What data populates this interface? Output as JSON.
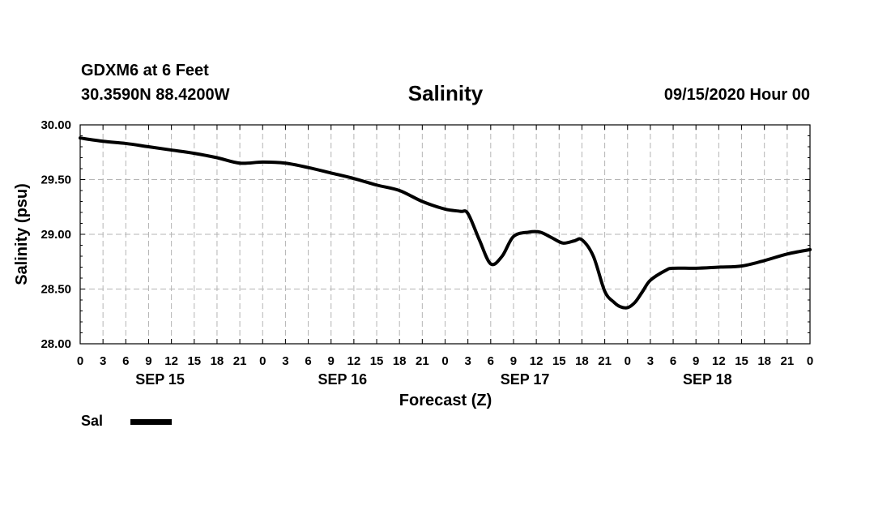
{
  "header": {
    "station": "GDXM6 at 6 Feet",
    "coords": "30.3590N 88.4200W",
    "title": "Salinity",
    "run": "09/15/2020 Hour 00"
  },
  "chart_data": {
    "type": "line",
    "title": "Salinity",
    "xlabel": "Forecast (Z)",
    "ylabel": "Salinity (psu)",
    "ylim": [
      28.0,
      30.0
    ],
    "yticks": [
      "28.00",
      "28.50",
      "29.00",
      "29.50",
      "30.00"
    ],
    "xlim_hours": [
      0,
      96
    ],
    "xtick_labels": [
      "0",
      "3",
      "6",
      "9",
      "12",
      "15",
      "18",
      "21",
      "0",
      "3",
      "6",
      "9",
      "12",
      "15",
      "18",
      "21",
      "0",
      "3",
      "6",
      "9",
      "12",
      "15",
      "18",
      "21",
      "0",
      "3",
      "6",
      "9",
      "12",
      "15",
      "18",
      "21",
      "0"
    ],
    "day_labels": [
      "SEP 15",
      "SEP 16",
      "SEP 17",
      "SEP 18"
    ],
    "grid": true,
    "legend": "bottom-left",
    "series": [
      {
        "name": "Sal",
        "color": "#000000",
        "x": [
          0,
          3,
          6,
          9,
          12,
          15,
          18,
          21,
          24,
          27,
          30,
          33,
          36,
          39,
          42,
          45,
          48,
          50,
          51,
          52.5,
          54,
          55.5,
          57,
          59,
          60.5,
          62,
          63.5,
          65,
          66,
          67.5,
          69,
          70.2,
          71,
          72,
          73,
          74,
          75,
          77,
          78,
          81,
          84,
          87,
          90,
          93,
          96
        ],
        "values": [
          29.88,
          29.85,
          29.83,
          29.8,
          29.77,
          29.74,
          29.7,
          29.65,
          29.66,
          29.65,
          29.61,
          29.56,
          29.51,
          29.45,
          29.4,
          29.3,
          29.23,
          29.21,
          29.19,
          28.95,
          28.73,
          28.8,
          28.98,
          29.02,
          29.02,
          28.97,
          28.92,
          28.94,
          28.95,
          28.8,
          28.48,
          28.38,
          28.34,
          28.33,
          28.38,
          28.48,
          28.58,
          28.67,
          28.69,
          28.69,
          28.7,
          28.71,
          28.76,
          28.82,
          28.86
        ]
      }
    ]
  }
}
